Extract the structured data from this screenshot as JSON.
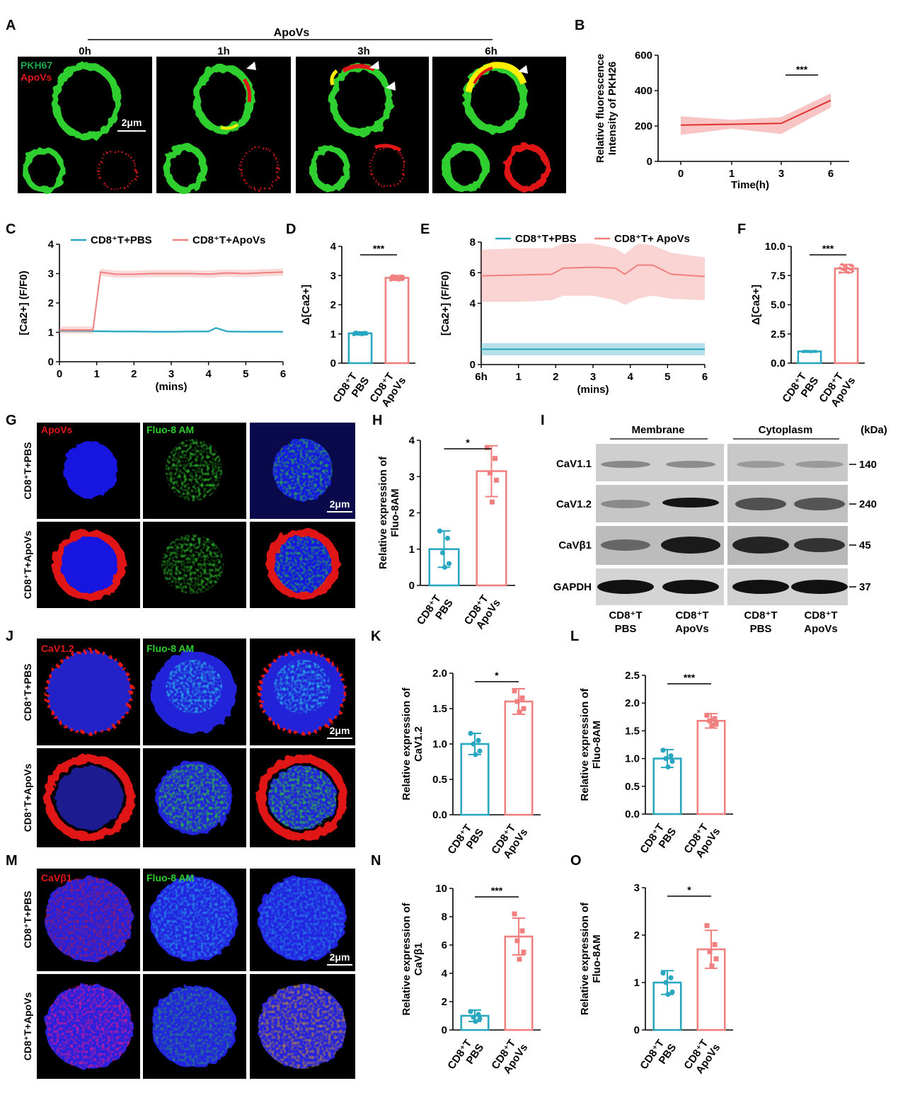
{
  "panels": {
    "A": {
      "label": "A",
      "header": "ApoVs",
      "times": [
        "0h",
        "1h",
        "3h",
        "6h"
      ],
      "stains": [
        "PKH67",
        "ApoVs"
      ],
      "scalebar": "2μm",
      "colors": {
        "green": "#22cc22",
        "red": "#e01818",
        "yellow": "#ffee00"
      }
    },
    "B": {
      "label": "B",
      "chart_data": {
        "type": "line",
        "x": [
          0,
          1,
          3,
          6
        ],
        "xticks": [
          "0",
          "1",
          "3",
          "6"
        ],
        "y": [
          205,
          210,
          215,
          345
        ],
        "band_low": [
          150,
          185,
          155,
          305
        ],
        "band_high": [
          255,
          235,
          250,
          385
        ],
        "ylim": [
          0,
          600
        ],
        "yticks": [
          0,
          200,
          400,
          600
        ],
        "xlabel": "Time(h)",
        "ylabel": [
          "Relative fluorescence",
          "Intensity of PKH26"
        ],
        "significance": "***",
        "color": "#ee5555"
      }
    },
    "C": {
      "label": "C",
      "chart_data": {
        "type": "line",
        "legend": [
          "CD8⁺T+PBS",
          "CD8⁺T+ApoVs"
        ],
        "series": [
          {
            "name": "CD8⁺T+PBS",
            "x": [
              0,
              0.5,
              1,
              1.5,
              2,
              2.5,
              3,
              3.5,
              4,
              4.2,
              4.5,
              5,
              5.5,
              6
            ],
            "y": [
              1.05,
              1.05,
              1.04,
              1.03,
              1.03,
              1.02,
              1.02,
              1.03,
              1.03,
              1.15,
              1.03,
              1.02,
              1.02,
              1.02
            ],
            "color": "#2aa7c0"
          },
          {
            "name": "CD8⁺T+ApoVs",
            "x": [
              0,
              0.5,
              0.9,
              1.1,
              1.5,
              2,
              2.5,
              3,
              3.5,
              4,
              4.5,
              5,
              5.5,
              6
            ],
            "y": [
              1.08,
              1.08,
              1.08,
              3.05,
              2.98,
              2.98,
              3.0,
              3.0,
              3.0,
              2.98,
              3.02,
              3.0,
              3.03,
              3.05
            ],
            "color": "#f08080"
          }
        ],
        "xlim": [
          0,
          6
        ],
        "ylim": [
          0,
          4
        ],
        "xticks": [
          0,
          1,
          2,
          3,
          4,
          5,
          6
        ],
        "yticks": [
          0,
          1,
          2,
          3,
          4
        ],
        "xlabel": "(mins)",
        "ylabel": "[Ca2+] (F/F0)"
      }
    },
    "D": {
      "label": "D",
      "chart_data": {
        "type": "bar",
        "categories": [
          [
            "CD8⁺T",
            "PBS"
          ],
          [
            "CD8⁺T",
            "ApoVs"
          ]
        ],
        "values": [
          1.02,
          2.92
        ],
        "errors": [
          0.05,
          0.08
        ],
        "ylim": [
          0,
          4
        ],
        "yticks": [
          0,
          1,
          2,
          3,
          4
        ],
        "ylabel": "Δ[Ca2+]",
        "significance": "***",
        "colors": [
          "#2aa7c0",
          "#f08080"
        ]
      }
    },
    "E": {
      "label": "E",
      "chart_data": {
        "type": "line",
        "legend": [
          "CD8⁺T+PBS",
          "CD8⁺T+ ApoVs"
        ],
        "series": [
          {
            "name": "CD8⁺T+PBS",
            "x": [
              0,
              1,
              2,
              3,
              4,
              5,
              6
            ],
            "y": [
              1.0,
              1.0,
              1.0,
              1.0,
              1.0,
              1.0,
              1.0
            ],
            "low": [
              0.6,
              0.6,
              0.6,
              0.6,
              0.6,
              0.6,
              0.6
            ],
            "high": [
              1.4,
              1.4,
              1.4,
              1.4,
              1.4,
              1.4,
              1.4
            ],
            "color": "#2aa7c0"
          },
          {
            "name": "CD8⁺T+ ApoVs",
            "x": [
              0,
              1,
              1.9,
              2.2,
              3,
              3.6,
              3.85,
              4.2,
              4.6,
              5.1,
              6
            ],
            "y": [
              5.8,
              5.85,
              5.9,
              6.3,
              6.35,
              6.3,
              5.9,
              6.5,
              6.5,
              5.9,
              5.75
            ],
            "low": [
              4.1,
              4.1,
              4.2,
              4.5,
              4.5,
              4.2,
              3.9,
              4.3,
              4.5,
              4.3,
              4.2
            ],
            "high": [
              7.5,
              7.6,
              7.6,
              7.9,
              7.9,
              7.6,
              7.2,
              7.9,
              7.8,
              7.3,
              7.0
            ],
            "color": "#f08080"
          }
        ],
        "xlim": [
          0,
          6
        ],
        "ylim": [
          0,
          8
        ],
        "xticks": [
          "6h",
          "1",
          "2",
          "3",
          "4",
          "5",
          "6"
        ],
        "yticks": [
          0,
          4,
          6,
          8
        ],
        "xlabel": "(mins)",
        "ylabel": "[Ca2+] (F/F0)"
      }
    },
    "F": {
      "label": "F",
      "chart_data": {
        "type": "bar",
        "categories": [
          [
            "CD8⁺T",
            "PBS"
          ],
          [
            "CD8⁺T",
            "ApoVs"
          ]
        ],
        "values": [
          1.0,
          8.1
        ],
        "errors": [
          0.03,
          0.35
        ],
        "ylim": [
          0,
          10
        ],
        "yticks": [
          0,
          2.5,
          5.0,
          7.5,
          10.0
        ],
        "ylabel": "Δ[Ca2+]",
        "significance": "***",
        "colors": [
          "#2aa7c0",
          "#f08080"
        ]
      }
    },
    "G": {
      "label": "G",
      "stains": [
        "ApoVs",
        "Fluo-8 AM"
      ],
      "rows": [
        "CD8⁺T+PBS",
        "CD8⁺T+ApoVs"
      ],
      "scalebar": "2μm"
    },
    "H": {
      "label": "H",
      "chart_data": {
        "type": "bar",
        "categories": [
          [
            "CD8⁺T",
            "PBS"
          ],
          [
            "CD8⁺T",
            "ApoVs"
          ]
        ],
        "values": [
          1.0,
          3.15
        ],
        "errors": [
          0.5,
          0.7
        ],
        "points": [
          [
            1.5,
            1.3,
            0.9,
            0.6,
            0.5
          ],
          [
            3.8,
            3.5,
            3.1,
            2.9,
            2.3
          ]
        ],
        "ylim": [
          0,
          4
        ],
        "yticks": [
          0,
          1,
          2,
          3,
          4
        ],
        "ylabel": [
          "Relative expression of",
          "Fluo-8AM"
        ],
        "significance": "*",
        "colors": [
          "#2aa7c0",
          "#f08080"
        ]
      }
    },
    "I": {
      "label": "I",
      "groups": [
        "Membrane",
        "Cytoplasm"
      ],
      "unit": "(kDa)",
      "rows": [
        {
          "protein": "CaV1.1",
          "kda": "140"
        },
        {
          "protein": "CaV1.2",
          "kda": "240"
        },
        {
          "protein": "CaVβ1",
          "kda": "45"
        },
        {
          "protein": "GAPDH",
          "kda": "37"
        }
      ],
      "lanes": [
        [
          "CD8⁺T",
          "PBS"
        ],
        [
          "CD8⁺T",
          "ApoVs"
        ],
        [
          "CD8⁺T",
          "PBS"
        ],
        [
          "CD8⁺T",
          "ApoVs"
        ]
      ]
    },
    "J": {
      "label": "J",
      "stains": [
        "CaV1.2",
        "Fluo-8 AM"
      ],
      "rows": [
        "CD8⁺T+PBS",
        "CD8⁺T+ApoVs"
      ],
      "scalebar": "2μm"
    },
    "K": {
      "label": "K",
      "chart_data": {
        "type": "bar",
        "categories": [
          [
            "CD8⁺T",
            "PBS"
          ],
          [
            "CD8⁺T",
            "ApoVs"
          ]
        ],
        "values": [
          1.0,
          1.6
        ],
        "errors": [
          0.15,
          0.18
        ],
        "points": [
          [
            1.15,
            1.05,
            1.0,
            0.9,
            0.85
          ],
          [
            1.75,
            1.65,
            1.6,
            1.5,
            1.45
          ]
        ],
        "ylim": [
          0,
          2.0
        ],
        "yticks": [
          0,
          0.5,
          1.0,
          1.5,
          2.0
        ],
        "ylabel": [
          "Relative expression of",
          "CaV1.2"
        ],
        "significance": "*",
        "colors": [
          "#2aa7c0",
          "#f08080"
        ]
      }
    },
    "L": {
      "label": "L",
      "chart_data": {
        "type": "bar",
        "categories": [
          [
            "CD8⁺T",
            "PBS"
          ],
          [
            "CD8⁺T",
            "ApoVs"
          ]
        ],
        "values": [
          1.0,
          1.68
        ],
        "errors": [
          0.16,
          0.13
        ],
        "points": [
          [
            1.15,
            1.05,
            1.0,
            0.95,
            0.85
          ],
          [
            1.78,
            1.72,
            1.68,
            1.62,
            1.6
          ]
        ],
        "ylim": [
          0,
          2.5
        ],
        "yticks": [
          0,
          0.5,
          1.0,
          1.5,
          2.0,
          2.5
        ],
        "ylabel": [
          "Relative expression of",
          "Fluo-8AM"
        ],
        "significance": "***",
        "colors": [
          "#2aa7c0",
          "#f08080"
        ]
      }
    },
    "M": {
      "label": "M",
      "stains": [
        "CaVβ1",
        "Fluo-8 AM"
      ],
      "rows": [
        "CD8⁺T+PBS",
        "CD8⁺T+ApoVs"
      ],
      "scalebar": "2μm"
    },
    "N": {
      "label": "N",
      "chart_data": {
        "type": "bar",
        "categories": [
          [
            "CD8⁺T",
            "PBS"
          ],
          [
            "CD8⁺T",
            "ApoVs"
          ]
        ],
        "values": [
          1.0,
          6.6
        ],
        "errors": [
          0.4,
          1.3
        ],
        "points": [
          [
            1.3,
            1.1,
            0.9,
            0.8,
            0.6
          ],
          [
            8.2,
            7.0,
            6.3,
            5.5,
            5.0
          ]
        ],
        "ylim": [
          0,
          10
        ],
        "yticks": [
          0,
          2,
          4,
          6,
          8,
          10
        ],
        "ylabel": [
          "Relative expression of",
          "CaVβ1"
        ],
        "significance": "***",
        "colors": [
          "#2aa7c0",
          "#f08080"
        ]
      }
    },
    "O": {
      "label": "O",
      "chart_data": {
        "type": "bar",
        "categories": [
          [
            "CD8⁺T",
            "PBS"
          ],
          [
            "CD8⁺T",
            "ApoVs"
          ]
        ],
        "values": [
          1.0,
          1.7
        ],
        "errors": [
          0.25,
          0.4
        ],
        "points": [
          [
            1.2,
            1.1,
            1.0,
            0.8,
            0.75
          ],
          [
            2.2,
            1.8,
            1.65,
            1.5,
            1.35
          ]
        ],
        "ylim": [
          0,
          3
        ],
        "yticks": [
          0,
          1,
          2,
          3
        ],
        "ylabel": [
          "Relative expression of",
          "Fluo-8AM"
        ],
        "significance": "*",
        "colors": [
          "#2aa7c0",
          "#f08080"
        ]
      }
    }
  }
}
